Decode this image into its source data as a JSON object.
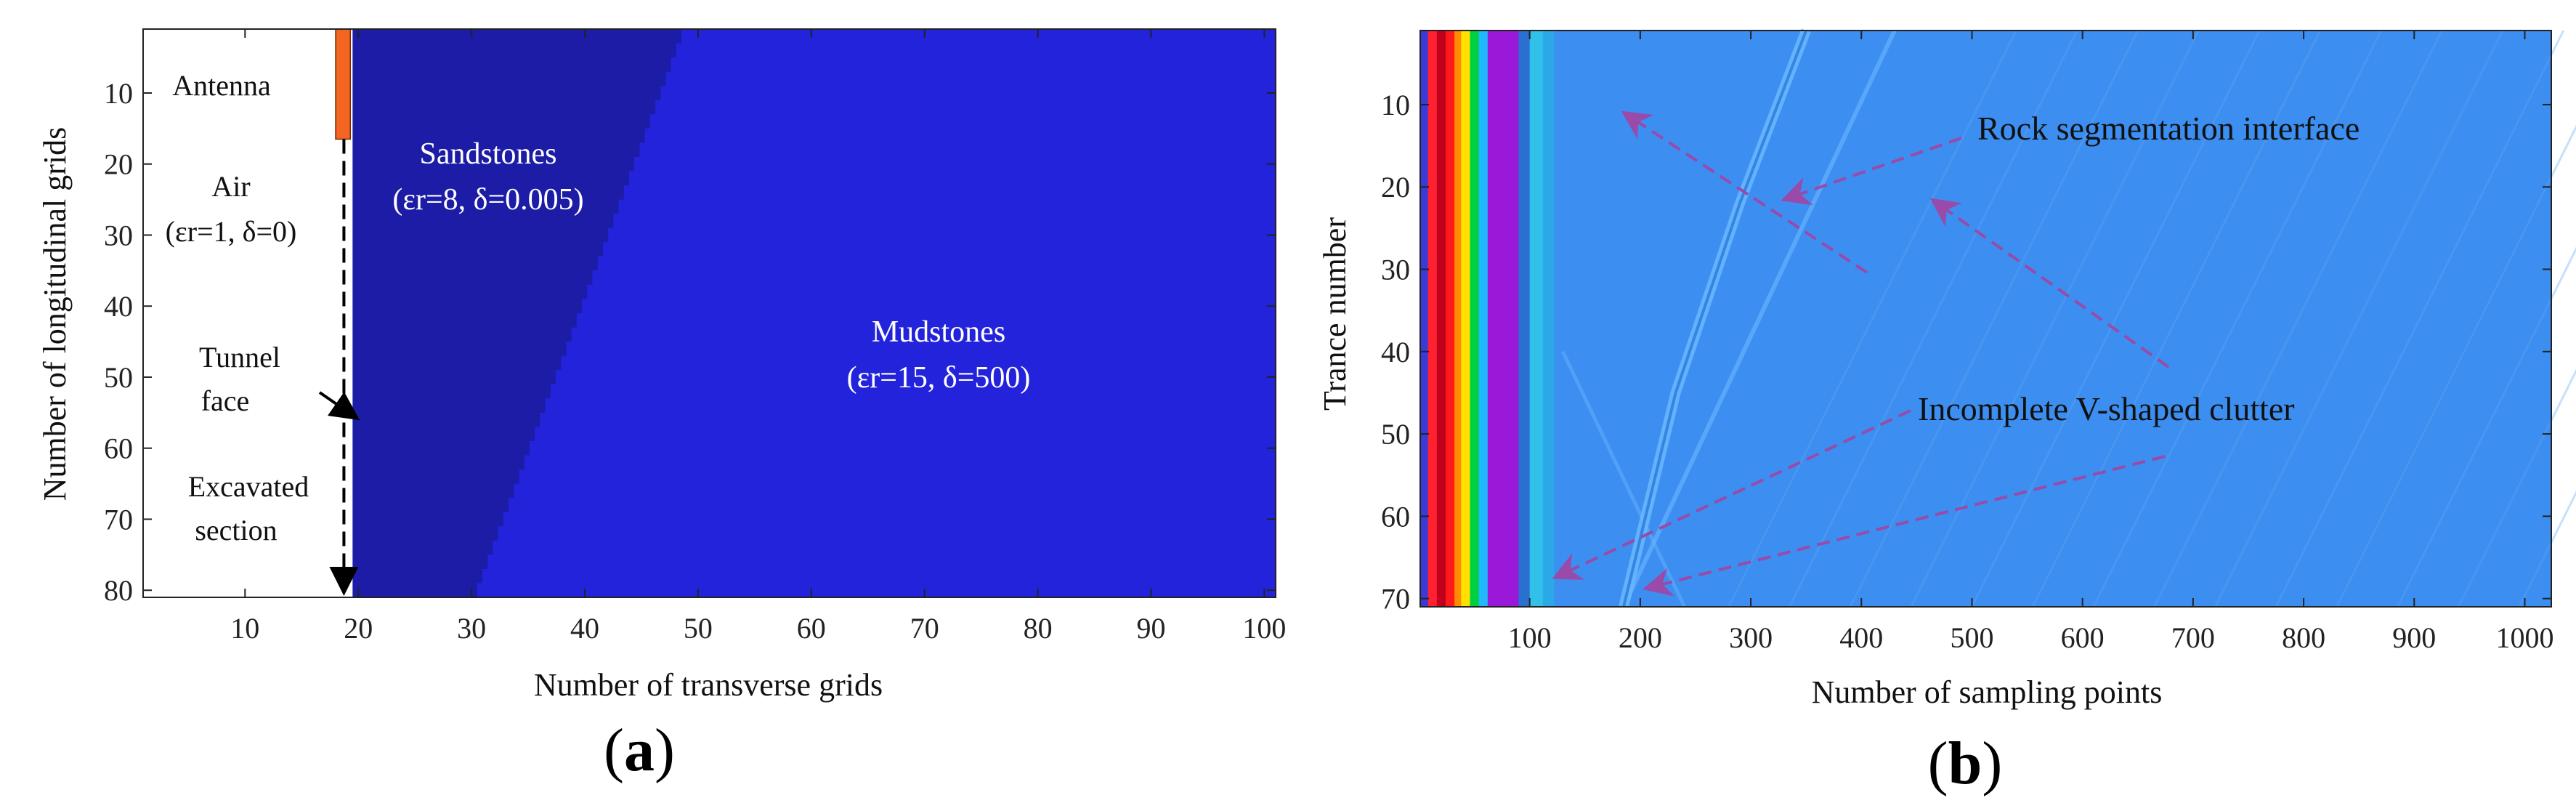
{
  "chart_data": [
    {
      "type": "heatmap",
      "panel_label": "(a)",
      "panel_letter": "a",
      "xlabel": "Number of transverse grids",
      "ylabel": "Number of longitudinal grids",
      "xlim": [
        1,
        101
      ],
      "ylim": [
        1,
        81
      ],
      "y_reversed": true,
      "xticks": [
        "10",
        "20",
        "30",
        "40",
        "50",
        "60",
        "70",
        "80",
        "90",
        "100"
      ],
      "yticks": [
        "10",
        "20",
        "30",
        "40",
        "50",
        "60",
        "70",
        "80"
      ],
      "regions": [
        {
          "name": "Air",
          "x_from": 1,
          "x_to": 19.5,
          "color": "#ffffff"
        },
        {
          "name": "Sandstones",
          "x_from": 19.5,
          "interface_x_top": 49,
          "interface_x_bottom": 30.5,
          "color": "#1c1ca6"
        },
        {
          "name": "Mudstones",
          "x_to": 101,
          "color": "#2323dc"
        }
      ],
      "antenna": {
        "x_from": 18,
        "x_to": 19.3,
        "y_from": 1,
        "y_to": 16.5,
        "color": "#f26522"
      },
      "tunnel_face_x": 19.5,
      "annotations": [
        {
          "lines": [
            "Antenna"
          ],
          "color": "#111111"
        },
        {
          "lines": [
            "Air",
            "(εr=1, δ=0)"
          ],
          "color": "#111111"
        },
        {
          "lines": [
            "Tunnel",
            "face"
          ],
          "color": "#111111"
        },
        {
          "lines": [
            "Excavated",
            "section"
          ],
          "color": "#111111"
        },
        {
          "lines": [
            "Sandstones",
            "(εr=8, δ=0.005)"
          ],
          "color": "#ffffff"
        },
        {
          "lines": [
            "Mudstones",
            "(εr=15, δ=500)"
          ],
          "color": "#ffffff"
        }
      ]
    },
    {
      "type": "heatmap",
      "panel_label": "(b)",
      "panel_letter": "b",
      "xlabel": "Number of sampling points",
      "ylabel": "Trance number",
      "xlim": [
        1,
        1024
      ],
      "ylim": [
        1,
        71
      ],
      "y_reversed": true,
      "xticks": [
        "100",
        "200",
        "300",
        "400",
        "500",
        "600",
        "700",
        "800",
        "900",
        "1000"
      ],
      "yticks": [
        "10",
        "20",
        "30",
        "40",
        "50",
        "60",
        "70"
      ],
      "background_color": "#3c8ef0",
      "direct_wave_bands": [
        {
          "x_from": 1,
          "x_to": 8,
          "color": "#3a3ad8"
        },
        {
          "x_from": 8,
          "x_to": 16,
          "color": "#ff2030"
        },
        {
          "x_from": 16,
          "x_to": 24,
          "color": "#c0001c"
        },
        {
          "x_from": 24,
          "x_to": 32,
          "color": "#ff1a1a"
        },
        {
          "x_from": 32,
          "x_to": 38,
          "color": "#ff8c00"
        },
        {
          "x_from": 38,
          "x_to": 46,
          "color": "#ffe000"
        },
        {
          "x_from": 46,
          "x_to": 54,
          "color": "#00d040"
        },
        {
          "x_from": 54,
          "x_to": 62,
          "color": "#20b8ff"
        },
        {
          "x_from": 62,
          "x_to": 90,
          "color": "#9a18d8"
        },
        {
          "x_from": 90,
          "x_to": 100,
          "color": "#2a70d0"
        },
        {
          "x_from": 100,
          "x_to": 112,
          "color": "#30c0e8"
        },
        {
          "x_from": 112,
          "x_to": 122,
          "color": "#2aa8e8"
        }
      ],
      "interface_trace": [
        [
          350,
          1
        ],
        [
          290,
          22
        ],
        [
          232,
          45
        ],
        [
          185,
          71
        ]
      ],
      "annotations": [
        {
          "text": "Rock segmentation interface",
          "color": "#111111"
        },
        {
          "text": "Incomplete V-shaped clutter",
          "color": "#111111"
        }
      ],
      "arrow_color": "#9a4aa8"
    }
  ]
}
